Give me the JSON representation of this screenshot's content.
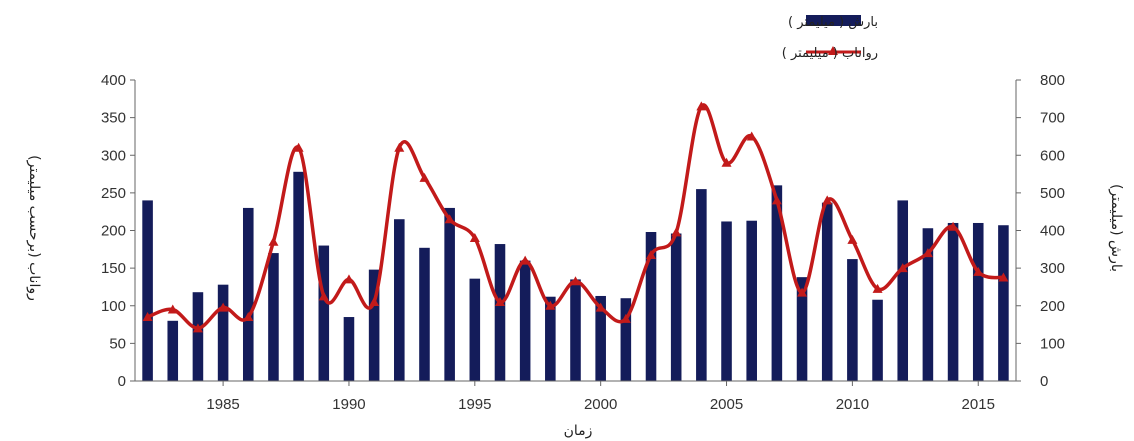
{
  "chart_data": {
    "type": "bar+line",
    "title": "",
    "xlabel": "زمان",
    "ylabel_left": "رواناب (برحسب میلیمتر)",
    "ylabel_right": "بارش (میلیمتر)",
    "left_axis": {
      "min": 0,
      "max": 400,
      "ticks": [
        "0",
        "50",
        "100",
        "150",
        "200",
        "250",
        "300",
        "350",
        "400"
      ]
    },
    "right_axis": {
      "min": 0,
      "max": 800,
      "ticks": [
        "0",
        "100",
        "200",
        "300",
        "400",
        "500",
        "600",
        "700",
        "800"
      ]
    },
    "x_ticks": [
      "1985",
      "1990",
      "1995",
      "2000",
      "2005",
      "2010",
      "2015"
    ],
    "x_tick_values": [
      1985,
      1990,
      1995,
      2000,
      2005,
      2010,
      2015
    ],
    "x_range": [
      1982,
      2016
    ],
    "years": [
      1982,
      1983,
      1984,
      1985,
      1986,
      1987,
      1988,
      1989,
      1990,
      1991,
      1992,
      1993,
      1994,
      1995,
      1996,
      1997,
      1998,
      1999,
      2000,
      2001,
      2002,
      2003,
      2004,
      2005,
      2006,
      2007,
      2008,
      2009,
      2010,
      2011,
      2012,
      2013,
      2014,
      2015,
      2016
    ],
    "series": [
      {
        "name": "بارش ( میلیمتر )",
        "kind": "bar",
        "axis": "left",
        "color": "#141c5a",
        "values": [
          240,
          80,
          118,
          128,
          230,
          170,
          278,
          180,
          85,
          148,
          215,
          177,
          230,
          136,
          182,
          160,
          112,
          135,
          113,
          110,
          198,
          196,
          255,
          212,
          213,
          260,
          138,
          237,
          162,
          108,
          240,
          203,
          210,
          210,
          207
        ]
      },
      {
        "name": "رواناب ( میلیمتر )",
        "kind": "line",
        "axis": "right",
        "color": "#c21a1a",
        "values": [
          170,
          190,
          140,
          195,
          170,
          370,
          620,
          225,
          270,
          210,
          620,
          540,
          430,
          380,
          210,
          320,
          200,
          265,
          195,
          165,
          335,
          395,
          730,
          580,
          650,
          480,
          235,
          480,
          375,
          245,
          300,
          340,
          410,
          290,
          275
        ]
      }
    ],
    "legend_position": "top-right",
    "grid": false
  }
}
